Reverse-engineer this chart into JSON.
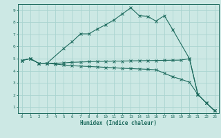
{
  "xlabel": "Humidex (Indice chaleur)",
  "bg_color": "#cce8e4",
  "line_color": "#1e6b5e",
  "grid_color": "#aad4d0",
  "xlim": [
    -0.5,
    23.5
  ],
  "ylim": [
    0.5,
    9.5
  ],
  "xticks": [
    0,
    1,
    2,
    3,
    4,
    5,
    6,
    7,
    8,
    9,
    10,
    11,
    12,
    13,
    14,
    15,
    16,
    17,
    18,
    19,
    20,
    21,
    22,
    23
  ],
  "yticks": [
    1,
    2,
    3,
    4,
    5,
    6,
    7,
    8,
    9
  ],
  "curve1_x": [
    0,
    1,
    2,
    3,
    5,
    6,
    7,
    8,
    9,
    10,
    11,
    12,
    13,
    14,
    15,
    16,
    17,
    18,
    20,
    21,
    22,
    23
  ],
  "curve1_y": [
    4.85,
    5.0,
    4.62,
    4.62,
    5.85,
    6.4,
    7.05,
    7.05,
    7.45,
    7.8,
    8.2,
    8.7,
    9.2,
    8.55,
    8.5,
    8.1,
    8.55,
    7.4,
    5.0,
    2.05,
    1.35,
    0.7
  ],
  "curve2_x": [
    0,
    1,
    2,
    3,
    4,
    5,
    6,
    7,
    8,
    9,
    10,
    11,
    12,
    13,
    14,
    15,
    16,
    17,
    18,
    19,
    20,
    21,
    22,
    23
  ],
  "curve2_y": [
    4.85,
    5.0,
    4.62,
    4.62,
    4.55,
    4.48,
    4.42,
    4.38,
    4.35,
    4.32,
    4.28,
    4.25,
    4.2,
    4.18,
    4.15,
    4.12,
    4.08,
    3.8,
    3.5,
    3.3,
    3.05,
    2.05,
    1.35,
    0.7
  ],
  "curve3_x": [
    0,
    1,
    2,
    3,
    4,
    5,
    6,
    7,
    8,
    9,
    10,
    11,
    12,
    13,
    14,
    15,
    16,
    17,
    18,
    19,
    20,
    21,
    22,
    23
  ],
  "curve3_y": [
    4.85,
    5.0,
    4.62,
    4.62,
    4.62,
    4.65,
    4.7,
    4.72,
    4.75,
    4.77,
    4.78,
    4.8,
    4.8,
    4.82,
    4.83,
    4.84,
    4.85,
    4.86,
    4.87,
    4.88,
    5.0,
    2.05,
    1.35,
    0.7
  ]
}
